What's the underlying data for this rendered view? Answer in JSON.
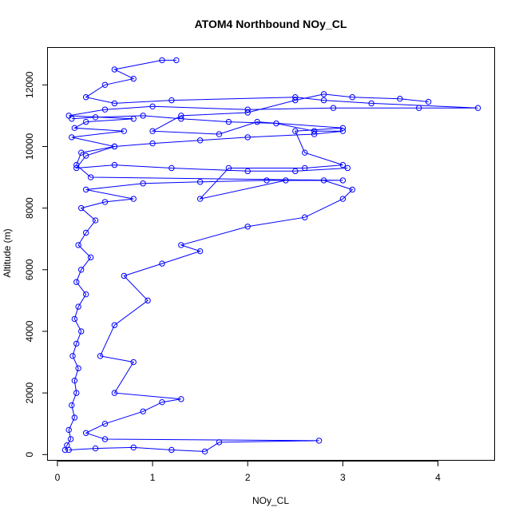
{
  "chart_data": {
    "type": "scatter",
    "title": "ATOM4 Northbound NOy_CL",
    "xlabel": "NOy_CL",
    "ylabel": "Altitude (m)",
    "xlim": [
      -0.1,
      4.6
    ],
    "ylim": [
      -200,
      13200
    ],
    "x_ticks": [
      0,
      1,
      2,
      3,
      4
    ],
    "y_ticks": [
      0,
      2000,
      4000,
      6000,
      8000,
      10000,
      12000
    ],
    "grid": false,
    "legend": "none",
    "marker": "open-circle",
    "connected": true,
    "color": "#0000ff",
    "series": [
      {
        "points": [
          [
            0.08,
            150
          ],
          [
            0.1,
            300
          ],
          [
            0.14,
            500
          ],
          [
            0.12,
            800
          ],
          [
            0.18,
            1200
          ],
          [
            0.15,
            1600
          ],
          [
            0.2,
            2000
          ],
          [
            0.18,
            2400
          ],
          [
            0.22,
            2800
          ],
          [
            0.16,
            3200
          ],
          [
            0.2,
            3600
          ],
          [
            0.25,
            4000
          ],
          [
            0.18,
            4400
          ],
          [
            0.22,
            4800
          ],
          [
            0.3,
            5200
          ],
          [
            0.2,
            5600
          ],
          [
            0.25,
            6000
          ],
          [
            0.35,
            6400
          ],
          [
            0.22,
            6800
          ],
          [
            0.3,
            7200
          ],
          [
            0.4,
            7600
          ],
          [
            0.25,
            8000
          ],
          [
            0.5,
            8200
          ],
          [
            0.8,
            8300
          ],
          [
            0.3,
            8600
          ],
          [
            0.9,
            8800
          ],
          [
            1.5,
            8850
          ],
          [
            2.2,
            8900
          ],
          [
            3.0,
            8900
          ],
          [
            0.35,
            9000
          ],
          [
            0.2,
            9400
          ],
          [
            0.25,
            9800
          ],
          [
            0.6,
            10000
          ],
          [
            0.15,
            10300
          ],
          [
            0.7,
            10500
          ],
          [
            0.18,
            10600
          ],
          [
            0.3,
            10800
          ],
          [
            0.8,
            10900
          ],
          [
            0.12,
            11000
          ],
          [
            0.5,
            11200
          ],
          [
            1.0,
            11300
          ],
          [
            2.0,
            11200
          ],
          [
            2.9,
            11250
          ],
          [
            3.8,
            11250
          ],
          [
            4.42,
            11250
          ],
          [
            3.3,
            11400
          ],
          [
            2.8,
            11500
          ],
          [
            2.5,
            11600
          ],
          [
            1.2,
            11500
          ],
          [
            0.6,
            11400
          ],
          [
            0.3,
            11600
          ],
          [
            0.5,
            12000
          ],
          [
            0.8,
            12200
          ],
          [
            0.6,
            12500
          ],
          [
            1.1,
            12800
          ],
          [
            1.25,
            12800
          ]
        ]
      },
      {
        "points": [
          [
            0.12,
            150
          ],
          [
            0.4,
            200
          ],
          [
            0.8,
            230
          ],
          [
            1.2,
            150
          ],
          [
            1.55,
            100
          ],
          [
            1.7,
            400
          ],
          [
            2.75,
            450
          ],
          [
            0.5,
            500
          ],
          [
            0.3,
            700
          ],
          [
            0.5,
            1000
          ],
          [
            0.9,
            1400
          ],
          [
            1.1,
            1700
          ],
          [
            1.3,
            1800
          ],
          [
            0.6,
            2000
          ],
          [
            0.8,
            3000
          ],
          [
            0.45,
            3200
          ],
          [
            0.6,
            4200
          ],
          [
            0.95,
            5000
          ],
          [
            0.7,
            5800
          ],
          [
            1.1,
            6200
          ],
          [
            1.5,
            6600
          ],
          [
            1.3,
            6800
          ],
          [
            2.0,
            7400
          ],
          [
            2.6,
            7700
          ],
          [
            3.0,
            8300
          ],
          [
            3.1,
            8600
          ],
          [
            2.8,
            8900
          ],
          [
            2.4,
            8900
          ],
          [
            1.5,
            8300
          ],
          [
            1.8,
            9300
          ],
          [
            2.6,
            9300
          ],
          [
            3.0,
            9400
          ],
          [
            2.6,
            9800
          ],
          [
            2.5,
            10500
          ],
          [
            3.0,
            10600
          ],
          [
            2.1,
            10800
          ],
          [
            1.7,
            10400
          ],
          [
            1.0,
            10500
          ],
          [
            1.3,
            11000
          ],
          [
            2.0,
            11100
          ],
          [
            2.5,
            11500
          ],
          [
            2.8,
            11700
          ],
          [
            3.1,
            11600
          ],
          [
            3.6,
            11550
          ],
          [
            3.9,
            11450
          ]
        ]
      },
      {
        "points": [
          [
            0.15,
            10900
          ],
          [
            0.4,
            10950
          ],
          [
            0.9,
            11000
          ],
          [
            1.3,
            10900
          ],
          [
            1.8,
            10800
          ],
          [
            2.3,
            10750
          ],
          [
            2.7,
            10500
          ],
          [
            3.0,
            10500
          ],
          [
            2.7,
            10400
          ],
          [
            2.0,
            10300
          ],
          [
            1.5,
            10200
          ],
          [
            1.0,
            10100
          ],
          [
            0.6,
            10000
          ],
          [
            0.3,
            9700
          ],
          [
            0.2,
            9300
          ],
          [
            0.6,
            9400
          ],
          [
            1.2,
            9300
          ],
          [
            2.0,
            9200
          ],
          [
            2.5,
            9200
          ],
          [
            3.05,
            9300
          ]
        ]
      }
    ]
  }
}
